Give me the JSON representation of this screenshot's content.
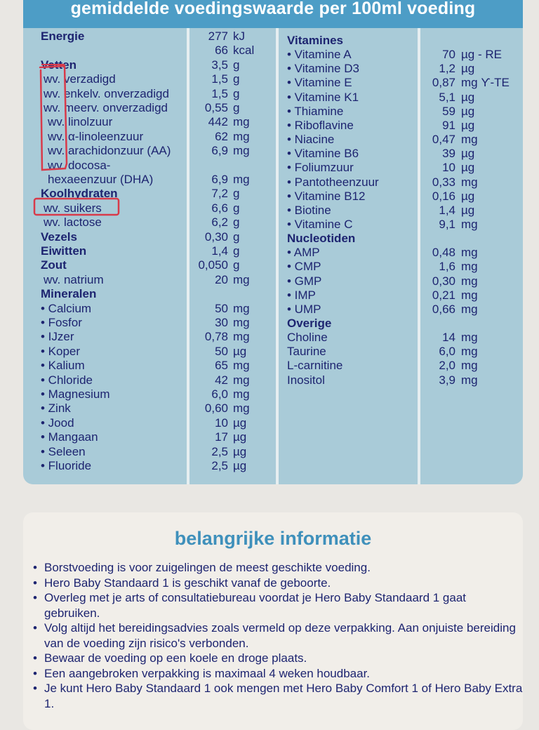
{
  "header": {
    "title": "gemiddelde voedingswaarde per 100ml voeding"
  },
  "left_rows": [
    {
      "label": "Energie",
      "value": "277",
      "unit": "kJ",
      "style": "heading"
    },
    {
      "label": "",
      "value": "66",
      "unit": "kcal",
      "style": "plain"
    },
    {
      "label": "Vetten",
      "value": "3,5",
      "unit": "g",
      "style": "heading"
    },
    {
      "label": "wv. verzadigd",
      "value": "1,5",
      "unit": "g",
      "style": "sub"
    },
    {
      "label": "wv. enkelv. onverzadigd",
      "value": "1,5",
      "unit": "g",
      "style": "sub"
    },
    {
      "label": "wv. meerv. onverzadigd",
      "value": "0,55",
      "unit": "g",
      "style": "sub"
    },
    {
      "label": "wv. linolzuur",
      "value": "442",
      "unit": "mg",
      "style": "sub2"
    },
    {
      "label": "wv. α-linoleenzuur",
      "value": "62",
      "unit": "mg",
      "style": "sub2"
    },
    {
      "label": "wv. arachidonzuur (AA)",
      "value": "6,9",
      "unit": "mg",
      "style": "sub2"
    },
    {
      "label": "wv. docosa-",
      "value": "",
      "unit": "",
      "style": "sub2"
    },
    {
      "label": "hexaeenzuur (DHA)",
      "value": "6,9",
      "unit": "mg",
      "style": "sub2"
    },
    {
      "label": "Koolhydraten",
      "value": "7,2",
      "unit": "g",
      "style": "heading"
    },
    {
      "label": "wv. suikers",
      "value": "6,6",
      "unit": "g",
      "style": "sub"
    },
    {
      "label": "wv. lactose",
      "value": "6,2",
      "unit": "g",
      "style": "sub"
    },
    {
      "label": "Vezels",
      "value": "0,30",
      "unit": "g",
      "style": "heading"
    },
    {
      "label": "Eiwitten",
      "value": "1,4",
      "unit": "g",
      "style": "heading"
    },
    {
      "label": "Zout",
      "value": "0,050",
      "unit": "g",
      "style": "heading"
    },
    {
      "label": "wv. natrium",
      "value": "20",
      "unit": "mg",
      "style": "sub"
    },
    {
      "label": "Mineralen",
      "value": "",
      "unit": "",
      "style": "heading"
    },
    {
      "label": "• Calcium",
      "value": "50",
      "unit": "mg",
      "style": "bullet"
    },
    {
      "label": "• Fosfor",
      "value": "30",
      "unit": "mg",
      "style": "bullet"
    },
    {
      "label": "• IJzer",
      "value": "0,78",
      "unit": "mg",
      "style": "bullet"
    },
    {
      "label": "• Koper",
      "value": "50",
      "unit": "µg",
      "style": "bullet"
    },
    {
      "label": "• Kalium",
      "value": "65",
      "unit": "mg",
      "style": "bullet"
    },
    {
      "label": "• Chloride",
      "value": "42",
      "unit": "mg",
      "style": "bullet"
    },
    {
      "label": "• Magnesium",
      "value": "6,0",
      "unit": "mg",
      "style": "bullet"
    },
    {
      "label": "• Zink",
      "value": "0,60",
      "unit": "mg",
      "style": "bullet"
    },
    {
      "label": "• Jood",
      "value": "10",
      "unit": "µg",
      "style": "bullet"
    },
    {
      "label": "• Mangaan",
      "value": "17",
      "unit": "µg",
      "style": "bullet"
    },
    {
      "label": "• Seleen",
      "value": "2,5",
      "unit": "µg",
      "style": "bullet"
    },
    {
      "label": "• Fluoride",
      "value": "2,5",
      "unit": "µg",
      "style": "bullet"
    }
  ],
  "right_rows": [
    {
      "label": "Vitamines",
      "value": "",
      "unit": "",
      "style": "heading"
    },
    {
      "label": "• Vitamine A",
      "value": "70",
      "unit": "µg - RE",
      "style": "bullet"
    },
    {
      "label": "• Vitamine D3",
      "value": "1,2",
      "unit": "µg",
      "style": "bullet"
    },
    {
      "label": "• Vitamine E",
      "value": "0,87",
      "unit": "mg ϒ-TE",
      "style": "bullet"
    },
    {
      "label": "• Vitamine K1",
      "value": "5,1",
      "unit": "µg",
      "style": "bullet"
    },
    {
      "label": "• Thiamine",
      "value": "59",
      "unit": "µg",
      "style": "bullet"
    },
    {
      "label": "• Riboflavine",
      "value": "91",
      "unit": "µg",
      "style": "bullet"
    },
    {
      "label": "• Niacine",
      "value": "0,47",
      "unit": "mg",
      "style": "bullet"
    },
    {
      "label": "• Vitamine B6",
      "value": "39",
      "unit": "µg",
      "style": "bullet"
    },
    {
      "label": "• Foliumzuur",
      "value": "10",
      "unit": "µg",
      "style": "bullet"
    },
    {
      "label": "• Pantotheenzuur",
      "value": "0,33",
      "unit": "mg",
      "style": "bullet"
    },
    {
      "label": "• Vitamine B12",
      "value": "0,16",
      "unit": "µg",
      "style": "bullet"
    },
    {
      "label": "• Biotine",
      "value": "1,4",
      "unit": "µg",
      "style": "bullet"
    },
    {
      "label": "• Vitamine C",
      "value": "9,1",
      "unit": "mg",
      "style": "bullet"
    },
    {
      "label": "Nucleotiden",
      "value": "",
      "unit": "",
      "style": "heading"
    },
    {
      "label": "• AMP",
      "value": "0,48",
      "unit": "mg",
      "style": "bullet"
    },
    {
      "label": "• CMP",
      "value": "1,6",
      "unit": "mg",
      "style": "bullet"
    },
    {
      "label": "• GMP",
      "value": "0,30",
      "unit": "mg",
      "style": "bullet"
    },
    {
      "label": "• IMP",
      "value": "0,21",
      "unit": "mg",
      "style": "bullet"
    },
    {
      "label": "• UMP",
      "value": "0,66",
      "unit": "mg",
      "style": "bullet"
    },
    {
      "label": "Overige",
      "value": "",
      "unit": "",
      "style": "heading"
    },
    {
      "label": "Choline",
      "value": "14",
      "unit": "mg",
      "style": "plain"
    },
    {
      "label": "Taurine",
      "value": "6,0",
      "unit": "mg",
      "style": "plain"
    },
    {
      "label": "L-carnitine",
      "value": "2,0",
      "unit": "mg",
      "style": "plain"
    },
    {
      "label": "Inositol",
      "value": "3,9",
      "unit": "mg",
      "style": "plain"
    }
  ],
  "info": {
    "title": "belangrijke informatie",
    "items": [
      "Borstvoeding is voor zuigelingen de meest geschikte voeding.",
      "Hero Baby Standaard 1 is geschikt vanaf de geboorte.",
      "Overleg met je arts of consultatiebureau voordat je Hero Baby Standaard 1 gaat gebruiken.",
      "Volg altijd het bereidingsadvies zoals vermeld op deze verpakking. Aan onjuiste bereiding van de voeding zijn risico's verbonden.",
      "Bewaar de voeding op een koele en droge plaats.",
      "Een aangebroken verpakking is maximaal 4 weken houdbaar.",
      "Je kunt Hero Baby Standaard 1 ook mengen met Hero Baby Comfort 1 of Hero Baby Extra 1."
    ]
  },
  "colors": {
    "header": "#4d9dc6",
    "panel": "#a9cbd8",
    "text": "#1d2470",
    "annotation": "#d83a4a",
    "info_title": "#3f90bb"
  }
}
